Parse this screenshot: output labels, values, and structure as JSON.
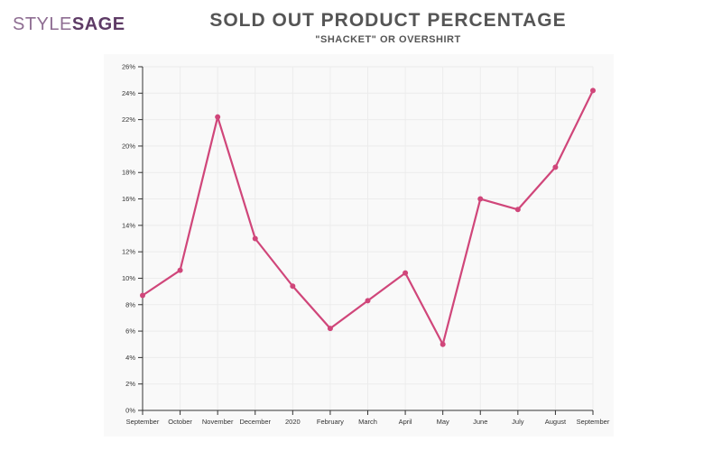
{
  "logo": {
    "part1": "STYLE",
    "part2": "SAGE"
  },
  "chart_data": {
    "type": "line",
    "title": "SOLD OUT PRODUCT PERCENTAGE",
    "subtitle": "\"SHACKET\" OR OVERSHIRT",
    "xlabel": "",
    "ylabel": "",
    "categories": [
      "September",
      "October",
      "November",
      "December",
      "2020",
      "February",
      "March",
      "April",
      "May",
      "June",
      "July",
      "August",
      "September"
    ],
    "series": [
      {
        "color": "#d0467a",
        "values": [
          8.7,
          10.6,
          22.2,
          13.0,
          9.4,
          6.2,
          8.3,
          10.4,
          5.0,
          16.0,
          15.2,
          18.4,
          24.2
        ]
      }
    ],
    "ylim": [
      0,
      26
    ],
    "yticks": [
      0,
      2,
      4,
      6,
      8,
      10,
      12,
      14,
      16,
      18,
      20,
      22,
      24,
      26
    ],
    "ytick_suffix": "%",
    "grid": true,
    "legend": "none"
  }
}
